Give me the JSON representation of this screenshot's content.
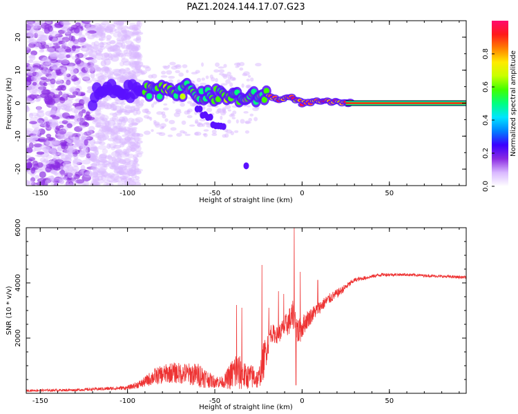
{
  "title": "PAZ1.2024.144.17.07.G23",
  "chart_data": [
    {
      "type": "heatmap",
      "xlabel": "Height of straight line (km)",
      "ylabel": "Frequency (Hz)",
      "xlim": [
        -158,
        94
      ],
      "ylim": [
        -25,
        25
      ],
      "xticks": [
        -150,
        -100,
        -50,
        0,
        50
      ],
      "yticks": [
        -20,
        -10,
        0,
        10,
        20
      ],
      "colorbar": {
        "label": "Normalized spectral amplitude",
        "range": [
          0,
          1
        ],
        "ticks": [
          0.0,
          0.2,
          0.4,
          0.6,
          0.8
        ]
      },
      "colormap": [
        "#ffffff",
        "#d9b8ff",
        "#8a2be2",
        "#3a00ff",
        "#0080ff",
        "#00e5ff",
        "#00ff80",
        "#40ff00",
        "#c8ff00",
        "#ffea00",
        "#ff8000",
        "#ff1a1a",
        "#ff0a6e"
      ],
      "ridge": [
        {
          "x": -118,
          "y": 3
        },
        {
          "x": -110,
          "y": 4
        },
        {
          "x": -100,
          "y": 3.5
        },
        {
          "x": -92,
          "y": 4
        },
        {
          "x": -85,
          "y": 3
        },
        {
          "x": -78,
          "y": 5
        },
        {
          "x": -72,
          "y": 4
        },
        {
          "x": -66,
          "y": 4
        },
        {
          "x": -60,
          "y": 3
        },
        {
          "x": -54,
          "y": 2
        },
        {
          "x": -48,
          "y": 2.5
        },
        {
          "x": -42,
          "y": 2
        },
        {
          "x": -36,
          "y": 2
        },
        {
          "x": -30,
          "y": 1
        },
        {
          "x": -24,
          "y": 2.5
        },
        {
          "x": -18,
          "y": 2
        },
        {
          "x": -12,
          "y": 1
        },
        {
          "x": -6,
          "y": 2
        },
        {
          "x": 0,
          "y": 0
        },
        {
          "x": 10,
          "y": 0.5
        },
        {
          "x": 20,
          "y": 0.3
        },
        {
          "x": 28,
          "y": 0
        },
        {
          "x": 94,
          "y": 0
        }
      ]
    },
    {
      "type": "line",
      "xlabel": "Height of straight line (km)",
      "ylabel": "SNR (10 * v/v)",
      "xlim": [
        -158,
        94
      ],
      "ylim": [
        0,
        6000
      ],
      "xticks": [
        -150,
        -100,
        -50,
        0,
        50
      ],
      "yticks": [
        2000,
        4000,
        6000
      ],
      "color": "#ee3333",
      "envelope": [
        {
          "x": -158,
          "y": 100,
          "amp": 80
        },
        {
          "x": -130,
          "y": 120,
          "amp": 90
        },
        {
          "x": -115,
          "y": 160,
          "amp": 120
        },
        {
          "x": -100,
          "y": 200,
          "amp": 150
        },
        {
          "x": -92,
          "y": 350,
          "amp": 300
        },
        {
          "x": -85,
          "y": 600,
          "amp": 600
        },
        {
          "x": -75,
          "y": 750,
          "amp": 750
        },
        {
          "x": -65,
          "y": 700,
          "amp": 800
        },
        {
          "x": -58,
          "y": 650,
          "amp": 900
        },
        {
          "x": -52,
          "y": 450,
          "amp": 500
        },
        {
          "x": -45,
          "y": 400,
          "amp": 400
        },
        {
          "x": -38,
          "y": 800,
          "amp": 1500
        },
        {
          "x": -32,
          "y": 600,
          "amp": 900
        },
        {
          "x": -28,
          "y": 600,
          "amp": 900
        },
        {
          "x": -25,
          "y": 500,
          "amp": 700
        },
        {
          "x": -22,
          "y": 1200,
          "amp": 1400
        },
        {
          "x": -18,
          "y": 2200,
          "amp": 700
        },
        {
          "x": -14,
          "y": 2100,
          "amp": 600
        },
        {
          "x": -10,
          "y": 2400,
          "amp": 800
        },
        {
          "x": -5,
          "y": 2800,
          "amp": 1200
        },
        {
          "x": -2,
          "y": 2200,
          "amp": 1000
        },
        {
          "x": 2,
          "y": 2600,
          "amp": 700
        },
        {
          "x": 8,
          "y": 3000,
          "amp": 500
        },
        {
          "x": 15,
          "y": 3400,
          "amp": 400
        },
        {
          "x": 22,
          "y": 3700,
          "amp": 300
        },
        {
          "x": 30,
          "y": 4100,
          "amp": 150
        },
        {
          "x": 45,
          "y": 4300,
          "amp": 120
        },
        {
          "x": 60,
          "y": 4300,
          "amp": 100
        },
        {
          "x": 75,
          "y": 4250,
          "amp": 100
        },
        {
          "x": 94,
          "y": 4200,
          "amp": 100
        }
      ],
      "spikes": [
        {
          "x": -37.5,
          "y": 3200
        },
        {
          "x": -34.5,
          "y": 3100
        },
        {
          "x": -23,
          "y": 4650
        },
        {
          "x": -19,
          "y": 3100
        },
        {
          "x": -13.5,
          "y": 3700
        },
        {
          "x": -10.5,
          "y": 3600
        },
        {
          "x": -4.5,
          "y": 6000
        },
        {
          "x": -3.5,
          "y": 300
        },
        {
          "x": -1,
          "y": 4400
        },
        {
          "x": 9,
          "y": 4100
        }
      ]
    }
  ]
}
